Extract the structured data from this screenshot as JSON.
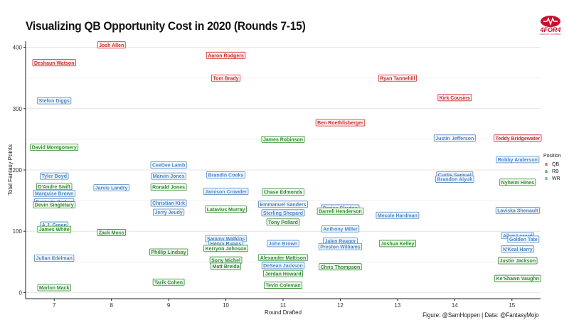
{
  "title": "Visualizing QB Opportunity Cost in 2020 (Rounds 7-15)",
  "caption": "Figure: @SamHoppen | Data: @FantasyMojo",
  "logo": {
    "text": "4FOR4",
    "subtext": "FANTASY FOOTBALL"
  },
  "colors": {
    "QB": "#cc2b2b",
    "RB": "#2e8b2e",
    "WR": "#4a86c5"
  },
  "legend": {
    "title": "Position",
    "items": [
      {
        "key": "QB",
        "label": "QB"
      },
      {
        "key": "RB",
        "label": "RB"
      },
      {
        "key": "WR",
        "label": "WR"
      }
    ]
  },
  "chart_data": {
    "type": "scatter",
    "title": "Visualizing QB Opportunity Cost in 2020 (Rounds 7-15)",
    "xlabel": "Round Drafted",
    "ylabel": "Total Fantasy Points",
    "xlim": [
      6.5,
      15.5
    ],
    "ylim": [
      -10,
      410
    ],
    "xticks": [
      7,
      8,
      9,
      10,
      11,
      12,
      13,
      14,
      15
    ],
    "yticks": [
      0,
      100,
      200,
      300,
      400
    ],
    "grid": true,
    "legend_position": "right",
    "points": [
      {
        "name": "Josh Allen",
        "pos": "QB",
        "x": 8.0,
        "y": 404
      },
      {
        "name": "Deshaun Watson",
        "pos": "QB",
        "x": 7.0,
        "y": 375
      },
      {
        "name": "Aaron Rodgers",
        "pos": "QB",
        "x": 10.0,
        "y": 387
      },
      {
        "name": "Tom Brady",
        "pos": "QB",
        "x": 10.0,
        "y": 350
      },
      {
        "name": "Ryan Tannehill",
        "pos": "QB",
        "x": 13.0,
        "y": 350
      },
      {
        "name": "Kirk Cousins",
        "pos": "QB",
        "x": 14.0,
        "y": 318
      },
      {
        "name": "Ben Roethlisberger",
        "pos": "QB",
        "x": 12.0,
        "y": 277
      },
      {
        "name": "Teddy Bridgewater",
        "pos": "QB",
        "x": 15.1,
        "y": 252
      },
      {
        "name": "Stefon Diggs",
        "pos": "WR",
        "x": 7.0,
        "y": 313
      },
      {
        "name": "Justin Jefferson",
        "pos": "WR",
        "x": 14.0,
        "y": 252
      },
      {
        "name": "Robby Anderson",
        "pos": "WR",
        "x": 15.1,
        "y": 217
      },
      {
        "name": "CeeDee Lamb",
        "pos": "WR",
        "x": 9.0,
        "y": 208
      },
      {
        "name": "Curtis Samuel",
        "pos": "WR",
        "x": 14.0,
        "y": 192
      },
      {
        "name": "Brandon Aiyuk",
        "pos": "WR",
        "x": 14.0,
        "y": 185
      },
      {
        "name": "Tyler Boyd",
        "pos": "WR",
        "x": 7.0,
        "y": 190
      },
      {
        "name": "Marvin Jones",
        "pos": "WR",
        "x": 9.0,
        "y": 190
      },
      {
        "name": "Brandin Cooks",
        "pos": "WR",
        "x": 10.0,
        "y": 192
      },
      {
        "name": "Jarvis Landry",
        "pos": "WR",
        "x": 8.0,
        "y": 171
      },
      {
        "name": "Marquise Brown",
        "pos": "WR",
        "x": 7.0,
        "y": 162
      },
      {
        "name": "Jamison Crowder",
        "pos": "WR",
        "x": 10.0,
        "y": 165
      },
      {
        "name": "DeVante Parker",
        "pos": "WR",
        "x": 7.0,
        "y": 148
      },
      {
        "name": "Christian Kirk",
        "pos": "WR",
        "x": 9.0,
        "y": 146
      },
      {
        "name": "Emmanuel Sanders",
        "pos": "WR",
        "x": 11.0,
        "y": 144
      },
      {
        "name": "Darius Slayton",
        "pos": "WR",
        "x": 12.0,
        "y": 138
      },
      {
        "name": "Jerry Jeudy",
        "pos": "WR",
        "x": 9.0,
        "y": 131
      },
      {
        "name": "Sterling Shepard",
        "pos": "WR",
        "x": 11.0,
        "y": 130
      },
      {
        "name": "Mecole Hardman",
        "pos": "WR",
        "x": 13.0,
        "y": 126
      },
      {
        "name": "Laviska Shenault",
        "pos": "WR",
        "x": 15.1,
        "y": 134
      },
      {
        "name": "A.J. Green",
        "pos": "WR",
        "x": 7.0,
        "y": 110
      },
      {
        "name": "Anthony Miller",
        "pos": "WR",
        "x": 12.0,
        "y": 104
      },
      {
        "name": "Sammy Watkins",
        "pos": "WR",
        "x": 10.0,
        "y": 88
      },
      {
        "name": "Henry Ruggs",
        "pos": "WR",
        "x": 10.0,
        "y": 80
      },
      {
        "name": "John Brown",
        "pos": "WR",
        "x": 11.0,
        "y": 80
      },
      {
        "name": "Jalen Reagor",
        "pos": "WR",
        "x": 12.0,
        "y": 84
      },
      {
        "name": "Preston Williams",
        "pos": "WR",
        "x": 12.0,
        "y": 75
      },
      {
        "name": "Allen Lazard",
        "pos": "WR",
        "x": 15.1,
        "y": 93
      },
      {
        "name": "Golden Tate",
        "pos": "WR",
        "x": 15.2,
        "y": 87
      },
      {
        "name": "N'Keal Harry",
        "pos": "WR",
        "x": 15.1,
        "y": 71
      },
      {
        "name": "Julian Edelman",
        "pos": "WR",
        "x": 7.0,
        "y": 56
      },
      {
        "name": "DeSean Jackson",
        "pos": "WR",
        "x": 11.0,
        "y": 44
      },
      {
        "name": "David Montgomery",
        "pos": "RB",
        "x": 7.0,
        "y": 237
      },
      {
        "name": "James Robinson",
        "pos": "RB",
        "x": 11.0,
        "y": 250
      },
      {
        "name": "D'Andre Swift",
        "pos": "RB",
        "x": 7.0,
        "y": 173
      },
      {
        "name": "Devin Singletary",
        "pos": "RB",
        "x": 7.0,
        "y": 143
      },
      {
        "name": "Ronald Jones",
        "pos": "RB",
        "x": 9.0,
        "y": 172
      },
      {
        "name": "Chase Edmonds",
        "pos": "RB",
        "x": 11.0,
        "y": 164
      },
      {
        "name": "Nyheim Hines",
        "pos": "RB",
        "x": 15.1,
        "y": 180
      },
      {
        "name": "Latavius Murray",
        "pos": "RB",
        "x": 10.0,
        "y": 136
      },
      {
        "name": "Darrell Henderson",
        "pos": "RB",
        "x": 12.0,
        "y": 133
      },
      {
        "name": "Tony Pollard",
        "pos": "RB",
        "x": 11.0,
        "y": 115
      },
      {
        "name": "James White",
        "pos": "RB",
        "x": 7.0,
        "y": 103
      },
      {
        "name": "Zack Moss",
        "pos": "RB",
        "x": 8.0,
        "y": 98
      },
      {
        "name": "Joshua Kelley",
        "pos": "RB",
        "x": 13.0,
        "y": 80
      },
      {
        "name": "Kerryon Johnson",
        "pos": "RB",
        "x": 10.0,
        "y": 72
      },
      {
        "name": "Phillip Lindsay",
        "pos": "RB",
        "x": 9.0,
        "y": 66
      },
      {
        "name": "Alexander Mattison",
        "pos": "RB",
        "x": 11.0,
        "y": 57
      },
      {
        "name": "Sony Michel",
        "pos": "RB",
        "x": 10.0,
        "y": 53
      },
      {
        "name": "Matt Breida",
        "pos": "RB",
        "x": 10.0,
        "y": 43
      },
      {
        "name": "Justin Jackson",
        "pos": "RB",
        "x": 15.1,
        "y": 52
      },
      {
        "name": "Chris Thompson",
        "pos": "RB",
        "x": 12.0,
        "y": 42
      },
      {
        "name": "Jordan Howard",
        "pos": "RB",
        "x": 11.0,
        "y": 31
      },
      {
        "name": "Ke'Shawn Vaughn",
        "pos": "RB",
        "x": 15.1,
        "y": 23
      },
      {
        "name": "Tarik Cohen",
        "pos": "RB",
        "x": 9.0,
        "y": 17
      },
      {
        "name": "Tevin Coleman",
        "pos": "RB",
        "x": 11.0,
        "y": 12
      },
      {
        "name": "Marlon Mack",
        "pos": "RB",
        "x": 7.0,
        "y": 8
      }
    ]
  }
}
